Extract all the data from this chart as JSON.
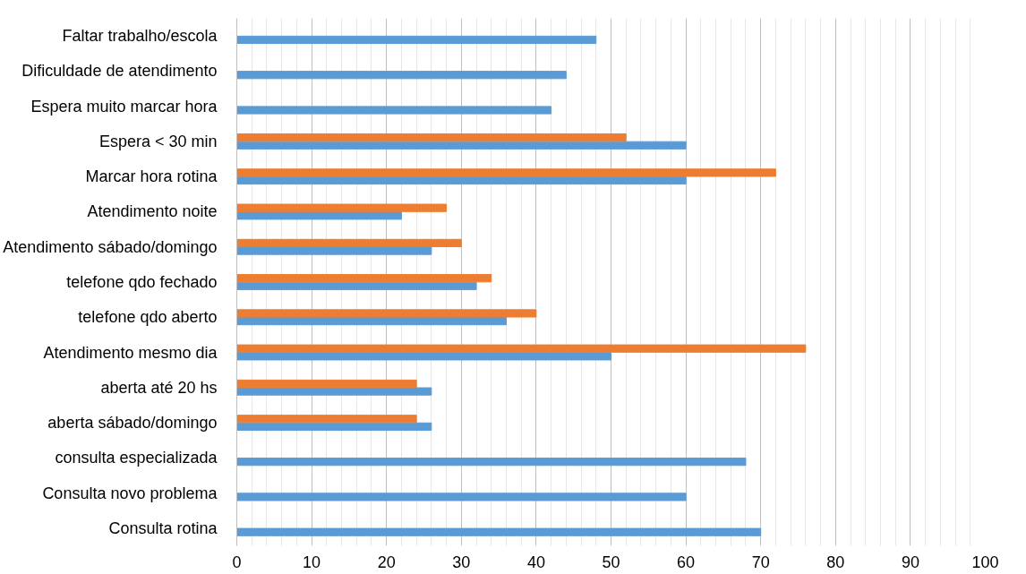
{
  "chart_data": {
    "type": "bar",
    "orientation": "horizontal",
    "categories": [
      "Faltar trabalho/escola",
      "Dificuldade de atendimento",
      "Espera muito marcar hora",
      "Espera < 30 min",
      "Marcar hora rotina",
      "Atendimento noite",
      "Atendimento sábado/domingo",
      "telefone qdo fechado",
      "telefone qdo aberto",
      "Atendimento mesmo dia",
      "aberta até 20 hs",
      "aberta sábado/domingo",
      "consulta especializada",
      "Consulta novo problema",
      "Consulta rotina"
    ],
    "series": [
      {
        "color": "#5b9bd5",
        "values": [
          48,
          44,
          42,
          60,
          60,
          22,
          26,
          32,
          36,
          50,
          26,
          26,
          68,
          60,
          70
        ]
      },
      {
        "color": "#ed7d31",
        "values": [
          null,
          null,
          null,
          52,
          72,
          28,
          30,
          34,
          40,
          76,
          24,
          24,
          null,
          null,
          null
        ]
      }
    ],
    "xlim": [
      0,
      100
    ],
    "xticks": [
      0,
      10,
      20,
      30,
      40,
      50,
      60,
      70,
      80,
      90,
      100
    ],
    "grid": "x"
  }
}
